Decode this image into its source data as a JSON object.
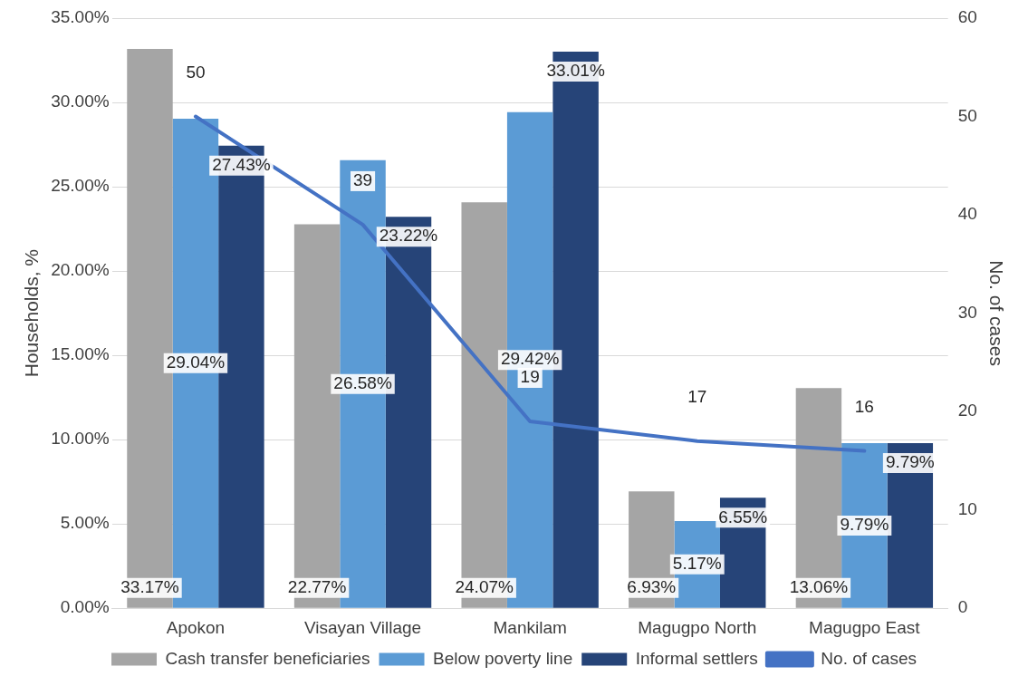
{
  "chart_data": {
    "type": "bar",
    "categories": [
      "Apokon",
      "Visayan Village",
      "Mankilam",
      "Magugpo North",
      "Magugpo East"
    ],
    "ylabel": "Households, %",
    "y2label": "No. of cases",
    "ylim": [
      0,
      35
    ],
    "yticks": [
      {
        "value": 0,
        "label": "0.00%"
      },
      {
        "value": 5,
        "label": "5.00%"
      },
      {
        "value": 10,
        "label": "10.00%"
      },
      {
        "value": 15,
        "label": "15.00%"
      },
      {
        "value": 20,
        "label": "20.00%"
      },
      {
        "value": 25,
        "label": "25.00%"
      },
      {
        "value": 30,
        "label": "30.00%"
      },
      {
        "value": 35,
        "label": "35.00%"
      }
    ],
    "y2lim": [
      0,
      60
    ],
    "y2ticks": [
      0,
      10,
      20,
      30,
      40,
      50,
      60
    ],
    "grid": "y",
    "legend": "bottom",
    "series": [
      {
        "name": "Cash transfer beneficiaries",
        "color": "#a5a5a5",
        "values": [
          33.17,
          22.77,
          24.07,
          6.93,
          13.06
        ],
        "value_labels": [
          "33.17%",
          "22.77%",
          "24.07%",
          "6.93%",
          "13.06%"
        ]
      },
      {
        "name": "Below poverty line",
        "color": "#5b9bd5",
        "values": [
          29.04,
          26.58,
          29.42,
          5.17,
          9.79
        ],
        "value_labels": [
          "29.04%",
          "26.58%",
          "29.42%",
          "5.17%",
          "9.79%"
        ]
      },
      {
        "name": "Informal settlers",
        "color": "#264478",
        "values": [
          27.43,
          23.22,
          33.01,
          6.55,
          9.79
        ],
        "value_labels": [
          "27.43%",
          "23.22%",
          "33.01%",
          "6.55%",
          "9.79%"
        ]
      },
      {
        "name": "No. of cases",
        "type": "line",
        "axis": "y2",
        "color": "#4472c4",
        "values": [
          50,
          39,
          19,
          17,
          16
        ],
        "value_labels": [
          "50",
          "39",
          "19",
          "17",
          "16"
        ]
      }
    ]
  }
}
